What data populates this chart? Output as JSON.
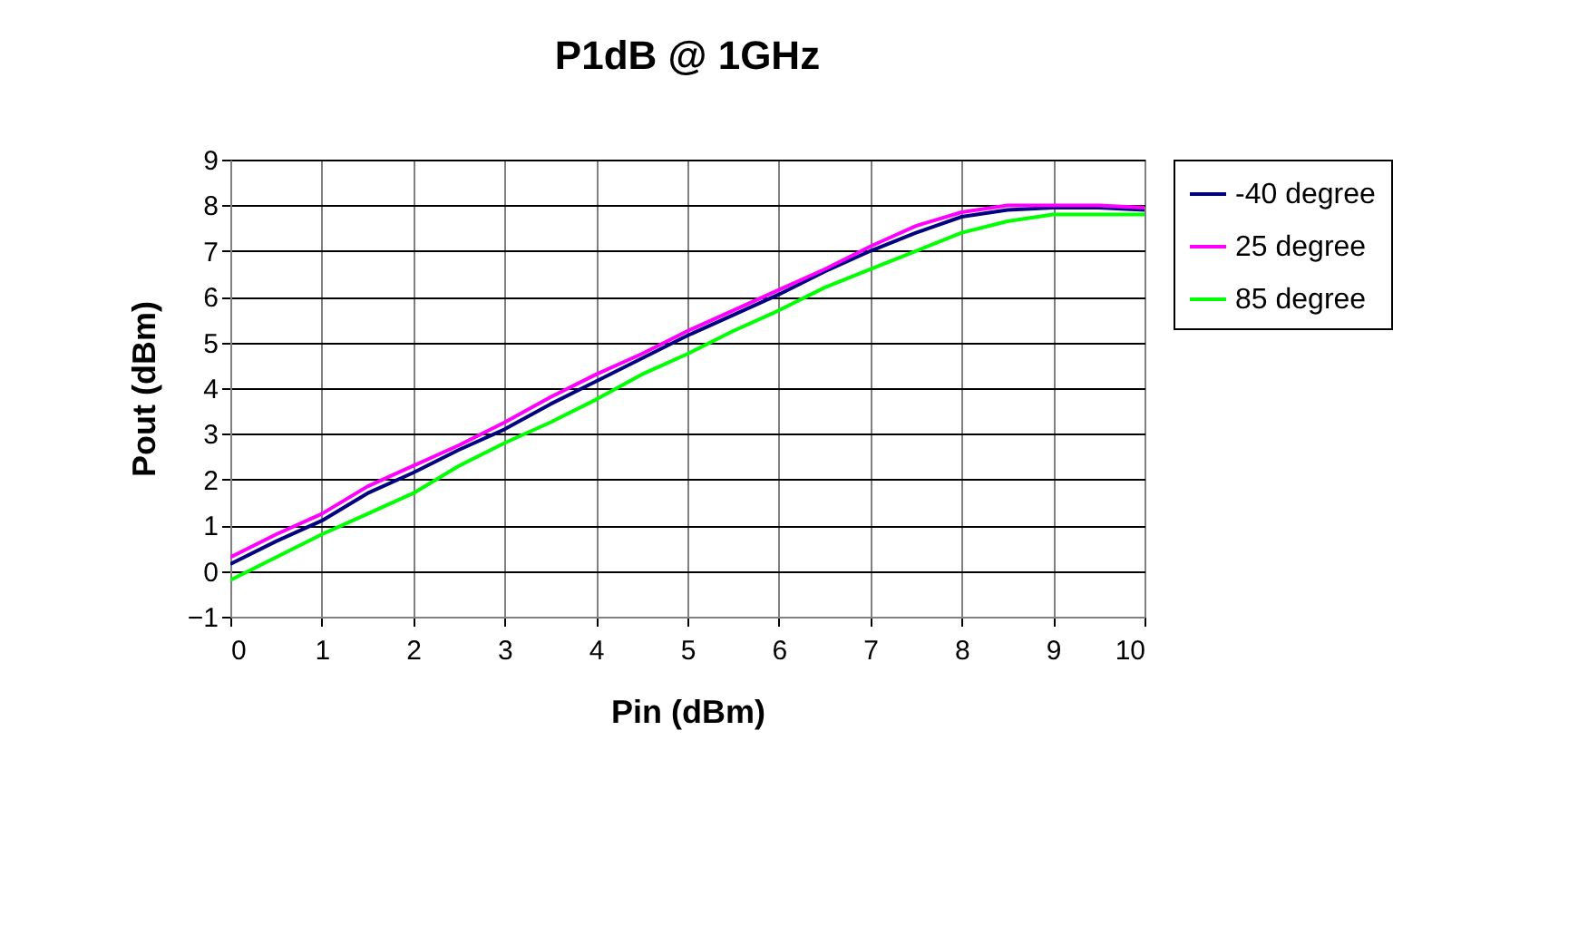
{
  "chart_data": {
    "type": "line",
    "title": "P1dB @ 1GHz",
    "xlabel": "Pin (dBm)",
    "ylabel": "Pout (dBm)",
    "x": [
      0,
      0.5,
      1,
      1.5,
      2,
      2.5,
      3,
      3.5,
      4,
      4.5,
      5,
      5.5,
      6,
      6.5,
      7,
      7.5,
      8,
      8.5,
      9,
      9.5,
      10
    ],
    "series": [
      {
        "name": "-40 degree",
        "color": "#000080",
        "values": [
          0.15,
          0.65,
          1.1,
          1.7,
          2.15,
          2.65,
          3.1,
          3.65,
          4.15,
          4.65,
          5.15,
          5.6,
          6.05,
          6.55,
          7.0,
          7.4,
          7.75,
          7.9,
          7.95,
          7.95,
          7.9
        ]
      },
      {
        "name": "25 degree",
        "color": "#ff00ff",
        "values": [
          0.3,
          0.8,
          1.25,
          1.85,
          2.3,
          2.75,
          3.25,
          3.8,
          4.3,
          4.75,
          5.25,
          5.7,
          6.15,
          6.6,
          7.1,
          7.55,
          7.85,
          8.0,
          8.0,
          8.0,
          7.95
        ]
      },
      {
        "name": "85 degree",
        "color": "#00ff00",
        "values": [
          -0.2,
          0.3,
          0.8,
          1.25,
          1.7,
          2.3,
          2.8,
          3.25,
          3.75,
          4.3,
          4.75,
          5.25,
          5.7,
          6.2,
          6.6,
          7.0,
          7.4,
          7.65,
          7.8,
          7.8,
          7.8
        ]
      }
    ],
    "xlim": [
      0,
      10
    ],
    "xticks": [
      0,
      1,
      2,
      3,
      4,
      5,
      6,
      7,
      8,
      9,
      10
    ],
    "ylim": [
      -1,
      9
    ],
    "yticks": [
      -1,
      0,
      1,
      2,
      3,
      4,
      5,
      6,
      7,
      8,
      9
    ],
    "grid": true,
    "legend": "right",
    "marker": "none",
    "line_style": "solid"
  }
}
